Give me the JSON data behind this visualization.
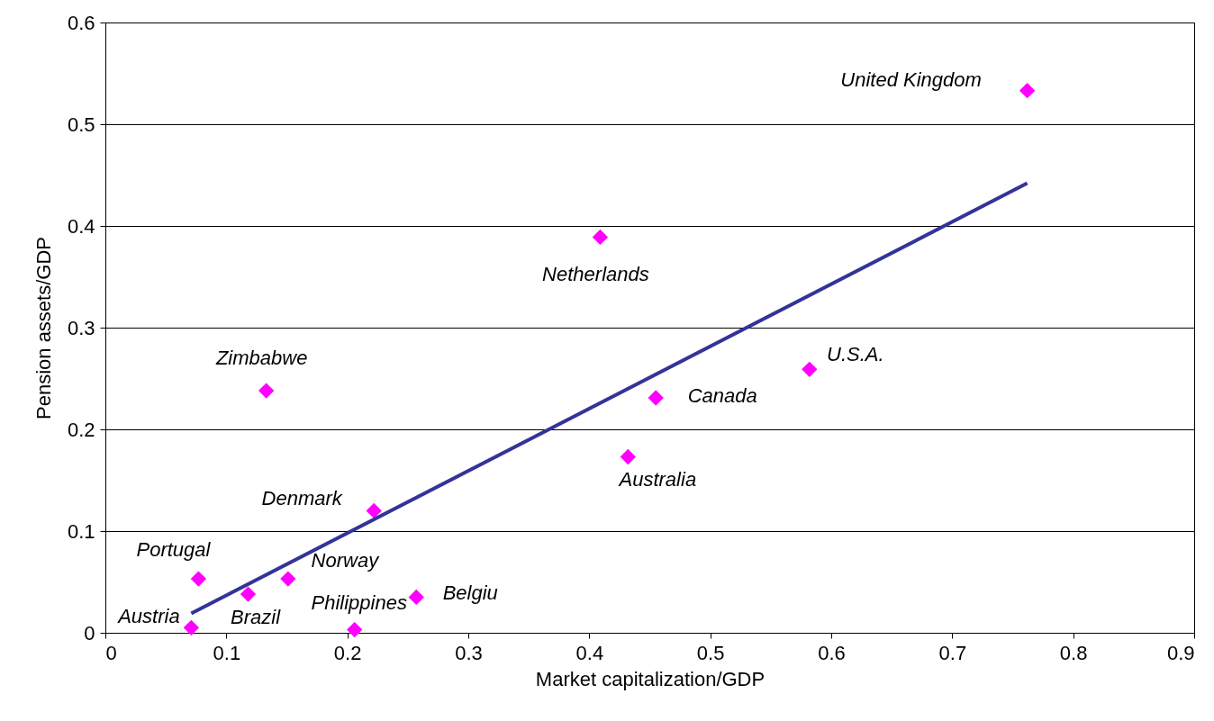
{
  "chart_data": {
    "type": "scatter",
    "xlabel": "Market capitalization/GDP",
    "ylabel": "Pension assets/GDP",
    "xlim": [
      0,
      0.9
    ],
    "xticks": [
      0,
      0.1,
      0.2,
      0.3,
      0.4,
      0.5,
      0.6,
      0.7,
      0.8,
      0.9
    ],
    "ylim": [
      0,
      0.6
    ],
    "yticks": [
      0,
      0.1,
      0.2,
      0.3,
      0.4,
      0.5,
      0.6
    ],
    "grid": "y",
    "series": [
      {
        "marker": "diamond",
        "color": "#ff00ff",
        "x": [
          0.762,
          0.409,
          0.582,
          0.455,
          0.432,
          0.133,
          0.222,
          0.077,
          0.151,
          0.118,
          0.257,
          0.206,
          0.071
        ],
        "values": [
          0.533,
          0.389,
          0.259,
          0.231,
          0.173,
          0.238,
          0.12,
          0.053,
          0.053,
          0.038,
          0.035,
          0.003,
          0.005
        ]
      },
      {
        "type": "line",
        "color": "#333399",
        "line_style": "solid",
        "x": [
          0.071,
          0.762
        ],
        "values": [
          0.019,
          0.442
        ]
      }
    ],
    "annotations": [
      {
        "text": "United Kingdom",
        "x": 0.762,
        "y": 0.533
      },
      {
        "text": "Netherlands",
        "x": 0.409,
        "y": 0.389
      },
      {
        "text": "U.S.A.",
        "x": 0.582,
        "y": 0.259
      },
      {
        "text": "Canada",
        "x": 0.455,
        "y": 0.231
      },
      {
        "text": "Australia",
        "x": 0.432,
        "y": 0.173
      },
      {
        "text": "Zimbabwe",
        "x": 0.133,
        "y": 0.238
      },
      {
        "text": "Denmark",
        "x": 0.222,
        "y": 0.12
      },
      {
        "text": "Portugal",
        "x": 0.077,
        "y": 0.053
      },
      {
        "text": "Norway",
        "x": 0.151,
        "y": 0.053
      },
      {
        "text": "Brazil",
        "x": 0.118,
        "y": 0.038
      },
      {
        "text": "Belgiu",
        "x": 0.257,
        "y": 0.035
      },
      {
        "text": "Philippines",
        "x": 0.206,
        "y": 0.003
      },
      {
        "text": "Austria",
        "x": 0.071,
        "y": 0.005
      }
    ]
  }
}
